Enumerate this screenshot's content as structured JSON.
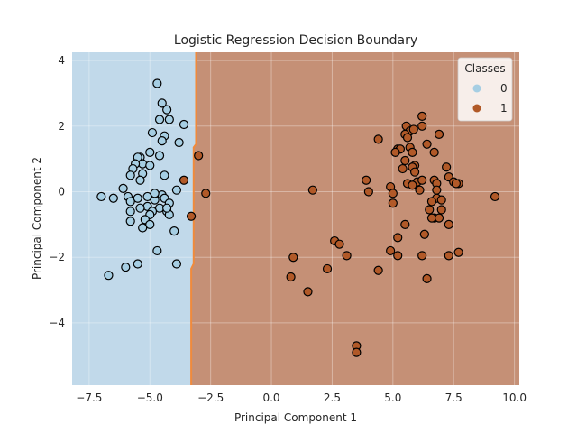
{
  "chart_data": {
    "type": "scatter",
    "title": "Logistic Regression Decision Boundary",
    "xlabel": "Principal Component 1",
    "ylabel": "Principal Component 2",
    "xlim": [
      -8.2,
      10.2
    ],
    "ylim": [
      -5.9,
      4.25
    ],
    "xticks": [
      -7.5,
      -5.0,
      -2.5,
      0.0,
      2.5,
      5.0,
      7.5,
      10.0
    ],
    "xtick_labels": [
      "−7.5",
      "−5.0",
      "−2.5",
      "0.0",
      "2.5",
      "5.0",
      "7.5",
      "10.0"
    ],
    "yticks": [
      -4,
      -2,
      0,
      2,
      4
    ],
    "ytick_labels": [
      "−4",
      "−2",
      "0",
      "2",
      "4"
    ],
    "grid": true,
    "legend": {
      "title": "Classes",
      "placement": "top-right"
    },
    "decision_boundary": [
      [
        -3.1,
        4.25
      ],
      [
        -3.1,
        1.45
      ],
      [
        -3.2,
        1.35
      ],
      [
        -3.2,
        -2.2
      ],
      [
        -3.3,
        -2.35
      ],
      [
        -3.3,
        -5.9
      ]
    ],
    "region_colors": {
      "0": "#c1d9ea",
      "1": "#c59076"
    },
    "boundary_line_color": "#f08a3c",
    "series": [
      {
        "name": "0",
        "color": "#a6cee3",
        "points": [
          [
            -4.7,
            3.3
          ],
          [
            -4.5,
            2.7
          ],
          [
            -4.3,
            2.5
          ],
          [
            -4.2,
            2.2
          ],
          [
            -4.6,
            2.2
          ],
          [
            -3.6,
            2.05
          ],
          [
            -4.9,
            1.8
          ],
          [
            -4.4,
            1.7
          ],
          [
            -4.5,
            1.55
          ],
          [
            -3.8,
            1.5
          ],
          [
            -5.4,
            1.05
          ],
          [
            -5.5,
            1.05
          ],
          [
            -5.0,
            1.2
          ],
          [
            -4.6,
            1.1
          ],
          [
            -5.3,
            0.85
          ],
          [
            -5.6,
            0.85
          ],
          [
            -5.7,
            0.7
          ],
          [
            -5.0,
            0.8
          ],
          [
            -5.8,
            0.5
          ],
          [
            -4.4,
            0.5
          ],
          [
            -5.3,
            0.55
          ],
          [
            -5.4,
            0.35
          ],
          [
            -3.9,
            0.05
          ],
          [
            -6.1,
            0.1
          ],
          [
            -7.0,
            -0.15
          ],
          [
            -6.5,
            -0.2
          ],
          [
            -5.9,
            -0.15
          ],
          [
            -5.5,
            -0.2
          ],
          [
            -5.1,
            -0.15
          ],
          [
            -4.8,
            -0.25
          ],
          [
            -4.5,
            -0.1
          ],
          [
            -4.4,
            -0.2
          ],
          [
            -4.2,
            -0.35
          ],
          [
            -4.6,
            -0.5
          ],
          [
            -5.1,
            -0.45
          ],
          [
            -5.8,
            -0.3
          ],
          [
            -5.4,
            -0.5
          ],
          [
            -5.8,
            -0.6
          ],
          [
            -4.9,
            -0.6
          ],
          [
            -4.3,
            -0.6
          ],
          [
            -4.2,
            -0.7
          ],
          [
            -5.0,
            -0.7
          ],
          [
            -5.2,
            -0.85
          ],
          [
            -5.8,
            -0.9
          ],
          [
            -5.0,
            -1.0
          ],
          [
            -5.3,
            -1.1
          ],
          [
            -4.0,
            -1.2
          ],
          [
            -4.7,
            -1.8
          ],
          [
            -5.5,
            -2.2
          ],
          [
            -3.9,
            -2.2
          ],
          [
            -6.0,
            -2.3
          ],
          [
            -6.7,
            -2.55
          ],
          [
            -4.8,
            -0.05
          ],
          [
            -4.3,
            -0.5
          ]
        ]
      },
      {
        "name": "1",
        "color": "#b15928",
        "points": [
          [
            -3.6,
            0.35
          ],
          [
            -3.0,
            1.1
          ],
          [
            -2.7,
            -0.05
          ],
          [
            -3.3,
            -0.75
          ],
          [
            5.55,
            2.0
          ],
          [
            6.2,
            2.3
          ],
          [
            5.7,
            1.85
          ],
          [
            5.85,
            1.9
          ],
          [
            6.2,
            2.0
          ],
          [
            5.5,
            1.75
          ],
          [
            6.9,
            1.75
          ],
          [
            4.4,
            1.6
          ],
          [
            5.6,
            1.65
          ],
          [
            6.4,
            1.45
          ],
          [
            5.7,
            1.35
          ],
          [
            5.2,
            1.3
          ],
          [
            5.3,
            1.3
          ],
          [
            5.8,
            1.2
          ],
          [
            5.1,
            1.2
          ],
          [
            6.7,
            1.2
          ],
          [
            5.5,
            0.95
          ],
          [
            5.4,
            0.7
          ],
          [
            5.9,
            0.8
          ],
          [
            5.8,
            0.75
          ],
          [
            7.2,
            0.75
          ],
          [
            5.9,
            0.6
          ],
          [
            6.0,
            0.3
          ],
          [
            5.6,
            0.25
          ],
          [
            5.8,
            0.2
          ],
          [
            6.1,
            0.05
          ],
          [
            6.2,
            0.35
          ],
          [
            6.7,
            0.35
          ],
          [
            7.3,
            0.45
          ],
          [
            7.5,
            0.3
          ],
          [
            7.7,
            0.25
          ],
          [
            7.6,
            0.25
          ],
          [
            3.9,
            0.35
          ],
          [
            4.0,
            0.0
          ],
          [
            4.9,
            0.15
          ],
          [
            5.0,
            -0.05
          ],
          [
            6.8,
            0.25
          ],
          [
            6.8,
            0.05
          ],
          [
            6.8,
            -0.2
          ],
          [
            7.0,
            -0.25
          ],
          [
            6.6,
            -0.3
          ],
          [
            6.5,
            -0.55
          ],
          [
            9.2,
            -0.15
          ],
          [
            5.0,
            -0.35
          ],
          [
            7.0,
            -0.55
          ],
          [
            6.7,
            -0.8
          ],
          [
            6.6,
            -0.8
          ],
          [
            6.9,
            -0.8
          ],
          [
            7.3,
            -1.0
          ],
          [
            5.5,
            -1.0
          ],
          [
            5.2,
            -1.4
          ],
          [
            6.3,
            -1.3
          ],
          [
            1.7,
            0.05
          ],
          [
            2.6,
            -1.5
          ],
          [
            2.8,
            -1.6
          ],
          [
            4.9,
            -1.8
          ],
          [
            3.1,
            -1.95
          ],
          [
            5.2,
            -1.95
          ],
          [
            6.2,
            -1.95
          ],
          [
            7.7,
            -1.85
          ],
          [
            7.3,
            -1.95
          ],
          [
            0.9,
            -2.0
          ],
          [
            2.3,
            -2.35
          ],
          [
            4.4,
            -2.4
          ],
          [
            0.8,
            -2.6
          ],
          [
            6.4,
            -2.65
          ],
          [
            1.5,
            -3.05
          ],
          [
            3.5,
            -4.7
          ],
          [
            3.5,
            -4.9
          ]
        ]
      }
    ]
  }
}
